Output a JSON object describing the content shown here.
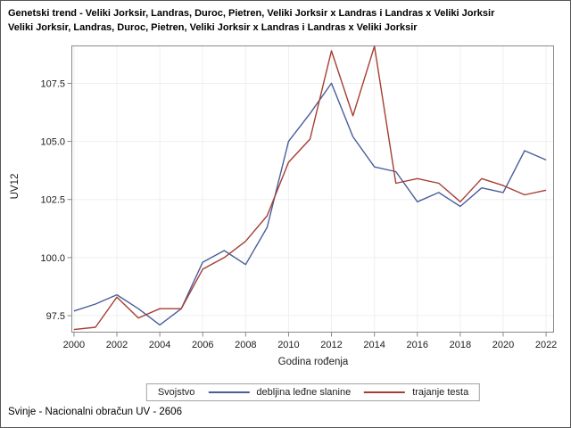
{
  "title": {
    "line1": "Genetski trend - Veliki Jorksir, Landras, Duroc, Pietren, Veliki Jorksir x Landras i Landras x Veliki Jorksir",
    "line2": "Veliki Jorksir, Landras, Duroc, Pietren, Veliki Jorksir x Landras i Landras x Veliki Jorksir"
  },
  "chart_data": {
    "type": "line",
    "title": "Genetski trend - Veliki Jorksir, Landras, Duroc, Pietren, Veliki Jorksir x Landras i Landras x Veliki Jorksir",
    "xlabel": "Godina rođenja",
    "ylabel": "UV12",
    "legend_title": "Svojstvo",
    "legend_position": "bottom",
    "grid": true,
    "x": [
      2000,
      2001,
      2002,
      2003,
      2004,
      2005,
      2006,
      2007,
      2008,
      2009,
      2010,
      2011,
      2012,
      2013,
      2014,
      2015,
      2016,
      2017,
      2018,
      2019,
      2020,
      2021,
      2022
    ],
    "x_ticks": [
      2000,
      2002,
      2004,
      2006,
      2008,
      2010,
      2012,
      2014,
      2016,
      2018,
      2020,
      2022
    ],
    "y_ticks": [
      97.5,
      100.0,
      102.5,
      105.0,
      107.5
    ],
    "xlim": [
      1999.9,
      2022.35
    ],
    "ylim": [
      96.79,
      109.11
    ],
    "series": [
      {
        "name": "debljina leđne slanine",
        "color": "#4a5e9a",
        "values": [
          97.7,
          98.0,
          98.4,
          97.8,
          97.1,
          97.8,
          99.8,
          100.3,
          99.7,
          101.3,
          105.0,
          106.2,
          107.5,
          105.2,
          103.9,
          103.7,
          102.4,
          102.8,
          102.2,
          103.0,
          102.8,
          104.6,
          104.2
        ]
      },
      {
        "name": "trajanje testa",
        "color": "#a43e32",
        "values": [
          96.9,
          97.0,
          98.3,
          97.4,
          97.8,
          97.8,
          99.5,
          100.0,
          100.7,
          101.8,
          104.1,
          105.1,
          108.9,
          106.1,
          109.1,
          103.2,
          103.4,
          103.2,
          102.4,
          103.4,
          103.1,
          102.7,
          102.9
        ]
      }
    ]
  },
  "footer": {
    "text": "Svinje - Nacionalni obračun UV - 2606"
  },
  "colors": {
    "series1": "#4a5e9a",
    "series2": "#a43e32",
    "gridline": "#efefef",
    "frame": "#87898c",
    "text": "#1c1c1c"
  }
}
